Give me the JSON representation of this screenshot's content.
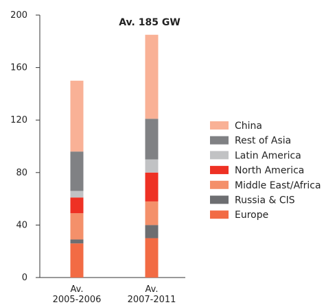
{
  "chart_data": {
    "type": "bar",
    "stacked": true,
    "categories": [
      [
        "Av.",
        "2005-2006"
      ],
      [
        "Av.",
        "2007-2011"
      ]
    ],
    "y_ticks": [
      "0",
      "40",
      "80",
      "120",
      "160",
      "200"
    ],
    "ylim": [
      0,
      200
    ],
    "grid": false,
    "legend_position": "right",
    "annotation": {
      "text": "Av. 185 GW",
      "category_index": 1
    },
    "series": [
      {
        "name": "Europe",
        "color": "#f26b44",
        "values": [
          26,
          30
        ]
      },
      {
        "name": "Russia & CIS",
        "color": "#6d6e71",
        "values": [
          3,
          10
        ]
      },
      {
        "name": "Middle East/Africa",
        "color": "#f4906a",
        "values": [
          20,
          18
        ]
      },
      {
        "name": "North America",
        "color": "#ee3124",
        "values": [
          12,
          22
        ]
      },
      {
        "name": "Latin America",
        "color": "#c1c2c4",
        "values": [
          5,
          10
        ]
      },
      {
        "name": "Rest of Asia",
        "color": "#808184",
        "values": [
          30,
          31
        ]
      },
      {
        "name": "China",
        "color": "#f9b196",
        "values": [
          54,
          64
        ]
      }
    ]
  }
}
